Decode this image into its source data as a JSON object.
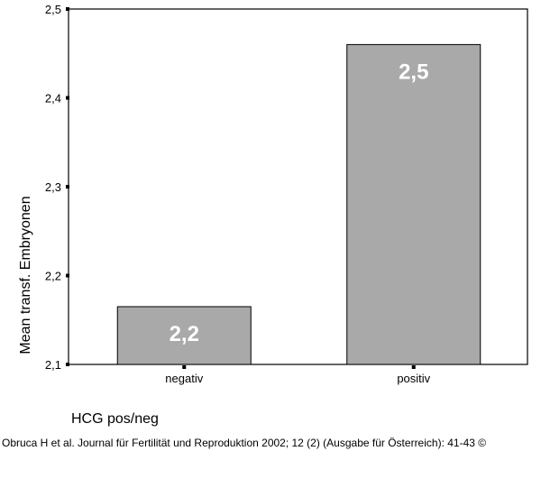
{
  "chart_data": {
    "type": "bar",
    "categories": [
      "negativ",
      "positiv"
    ],
    "values": [
      2.165,
      2.46
    ],
    "data_labels": [
      "2,2",
      "2,5"
    ],
    "ylabel": "Mean transf. Embryonen",
    "xlabel": "HCG pos/neg",
    "ylim": [
      2.1,
      2.5
    ],
    "yticks": [
      2.1,
      2.2,
      2.3,
      2.4,
      2.5
    ],
    "ytick_labels": [
      "2,1",
      "2,2",
      "2,3",
      "2,4",
      "2,5"
    ],
    "bar_color": "#a9a9a9",
    "grid": false
  },
  "source": "Obruca H et al. Journal für Fertilität und Reproduktion 2002; 12 (2) (Ausgabe für Österreich): 41-43 ©"
}
